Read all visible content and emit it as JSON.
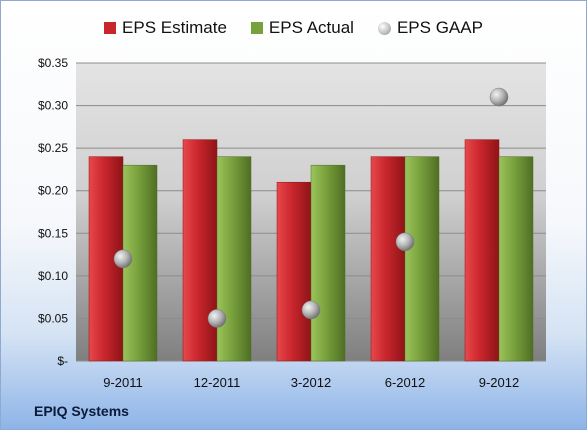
{
  "chart_data": {
    "type": "bar",
    "categories": [
      "9-2011",
      "12-2011",
      "3-2012",
      "6-2012",
      "9-2012"
    ],
    "series": [
      {
        "name": "EPS Estimate",
        "kind": "bar",
        "color": "#c8262c",
        "values": [
          0.24,
          0.26,
          0.21,
          0.24,
          0.26
        ]
      },
      {
        "name": "EPS Actual",
        "kind": "bar",
        "color": "#78a03c",
        "values": [
          0.23,
          0.24,
          0.23,
          0.24,
          0.24
        ]
      },
      {
        "name": "EPS GAAP",
        "kind": "scatter",
        "color": "#a6a6a6",
        "values": [
          0.12,
          0.05,
          0.06,
          0.14,
          0.31
        ]
      }
    ],
    "ylim": [
      0,
      0.35
    ],
    "yticks": [
      0,
      0.05,
      0.1,
      0.15,
      0.2,
      0.25,
      0.3,
      0.35
    ],
    "ytick_labels": [
      "$-",
      "$0.05",
      "$0.10",
      "$0.15",
      "$0.20",
      "$0.25",
      "$0.30",
      "$0.35"
    ],
    "grid": true,
    "legend": "top"
  },
  "legend_labels": {
    "estimate": "EPS Estimate",
    "actual": "EPS Actual",
    "gaap": "EPS GAAP"
  },
  "footer": {
    "company": "EPIQ Systems"
  }
}
